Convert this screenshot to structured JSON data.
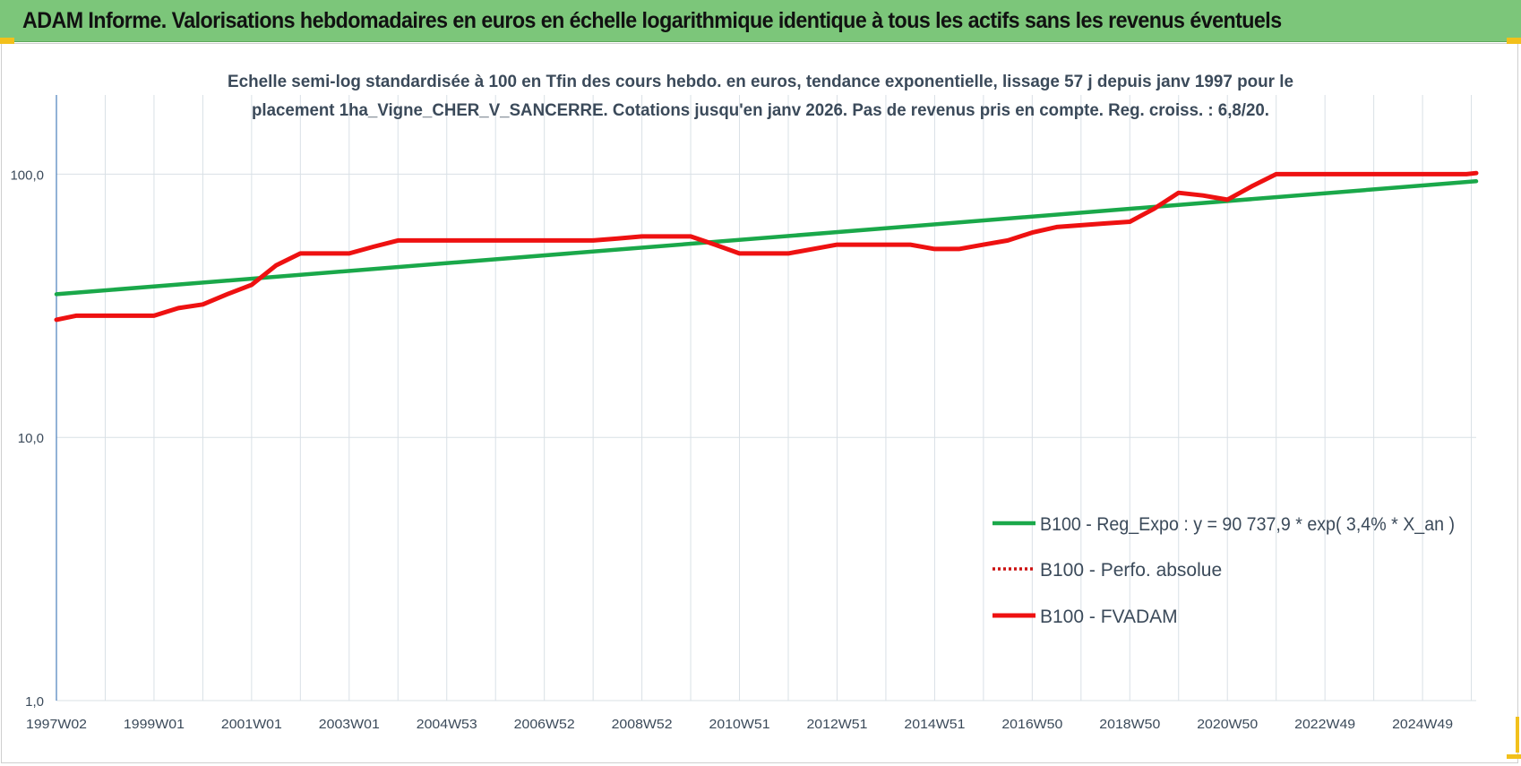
{
  "banner": {
    "title": "ADAM Informe. Valorisations hebdomadaires en euros en échelle logarithmique identique à tous les actifs sans les revenus éventuels"
  },
  "colors": {
    "banner_bg": "#7cc67a",
    "regression": "#1aa84a",
    "fvadam": "#ee1111",
    "perfo": "#cc1111",
    "axis": "#4a7ebb",
    "grid": "#d9e0e6",
    "text": "#3b4a5a",
    "handle": "#f2c01b"
  },
  "chart_data": {
    "type": "line",
    "title_lines": [
      "Echelle semi-log standardisée à 100 en Tfin des cours hebdo. en euros, tendance exponentielle, lissage 57 j depuis janv 1997 pour le",
      "placement 1ha_Vigne_CHER_V_SANCERRE. Cotations jusqu'en janv 2026. Pas de revenus pris en compte. Reg. croiss. : 6,8/20."
    ],
    "y_scale": "log",
    "ylim": [
      1,
      200
    ],
    "xlim": [
      1997.0,
      2026.1
    ],
    "y_ticks": [
      {
        "value": 1,
        "label": "1,0"
      },
      {
        "value": 10,
        "label": "10,0"
      },
      {
        "value": 100,
        "label": "100,0"
      }
    ],
    "x_ticks": [
      {
        "value": 1997.0,
        "label": "1997W02"
      },
      {
        "value": 1999.0,
        "label": "1999W01"
      },
      {
        "value": 2001.0,
        "label": "2001W01"
      },
      {
        "value": 2003.0,
        "label": "2003W01"
      },
      {
        "value": 2005.0,
        "label": "2004W53"
      },
      {
        "value": 2007.0,
        "label": "2006W52"
      },
      {
        "value": 2009.0,
        "label": "2008W52"
      },
      {
        "value": 2011.0,
        "label": "2010W51"
      },
      {
        "value": 2013.0,
        "label": "2012W51"
      },
      {
        "value": 2015.0,
        "label": "2014W51"
      },
      {
        "value": 2017.0,
        "label": "2016W50"
      },
      {
        "value": 2019.0,
        "label": "2018W50"
      },
      {
        "value": 2021.0,
        "label": "2020W50"
      },
      {
        "value": 2023.0,
        "label": "2022W49"
      },
      {
        "value": 2025.0,
        "label": "2024W49"
      }
    ],
    "grid": true,
    "legend_position": "bottom-right",
    "series": [
      {
        "name": "B100 - Reg_Expo : y = 90 737,9 * exp( 3,4% *  X_an )",
        "style": "solid-green",
        "x": [
          1997.0,
          2026.1
        ],
        "y": [
          35,
          94
        ]
      },
      {
        "name": "B100 - Perfo. absolue",
        "style": "dotted-red",
        "x": [],
        "y": []
      },
      {
        "name": "B100 - FVADAM",
        "style": "solid-red",
        "x": [
          1997.0,
          1997.4,
          1998.0,
          1999.0,
          1999.5,
          2000.0,
          2000.5,
          2001.0,
          2001.5,
          2002.0,
          2002.5,
          2003.0,
          2003.5,
          2004.0,
          2005.0,
          2006.0,
          2007.0,
          2008.0,
          2008.5,
          2009.0,
          2009.5,
          2010.0,
          2010.5,
          2011.0,
          2011.5,
          2012.0,
          2013.0,
          2014.0,
          2014.5,
          2015.0,
          2015.5,
          2016.0,
          2016.5,
          2017.0,
          2017.5,
          2018.0,
          2018.5,
          2019.0,
          2019.5,
          2020.0,
          2020.5,
          2021.0,
          2021.5,
          2022.0,
          2022.5,
          2023.0,
          2024.0,
          2025.0,
          2025.9,
          2026.1
        ],
        "y": [
          28,
          29,
          29,
          29,
          31,
          32,
          35,
          38,
          45,
          50,
          50,
          50,
          53,
          56,
          56,
          56,
          56,
          56,
          57,
          58,
          58,
          58,
          54,
          50,
          50,
          50,
          54,
          54,
          54,
          52,
          52,
          54,
          56,
          60,
          63,
          64,
          65,
          66,
          74,
          85,
          83,
          80,
          90,
          100,
          100,
          100,
          100,
          100,
          100,
          101
        ]
      }
    ]
  }
}
